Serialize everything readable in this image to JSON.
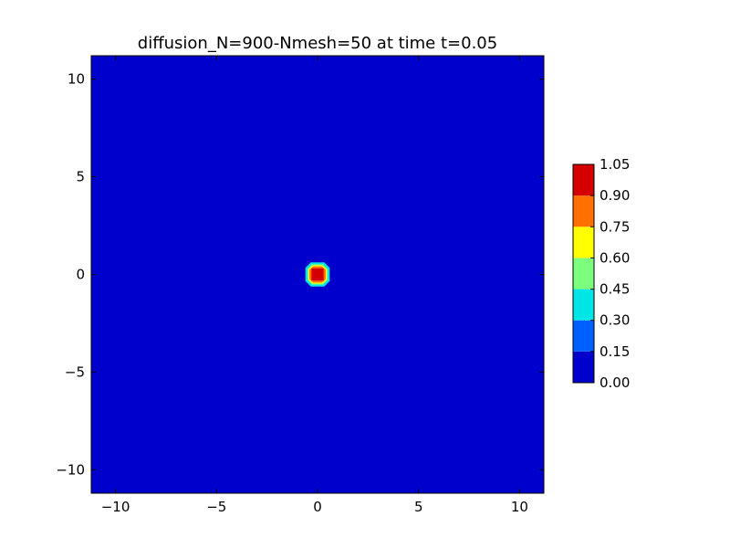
{
  "chart_data": {
    "type": "heatmap",
    "title": "diffusion_N=900-Nmesh=50 at time t=0.05",
    "xlabel": "",
    "ylabel": "",
    "xlim": [
      -11.2,
      11.2
    ],
    "ylim": [
      -11.2,
      11.2
    ],
    "x_ticks": [
      -10,
      -5,
      0,
      5,
      10
    ],
    "y_ticks": [
      -10,
      -5,
      0,
      5,
      10
    ],
    "x_tick_labels": [
      "−10",
      "−5",
      "0",
      "5",
      "10"
    ],
    "y_tick_labels": [
      "−10",
      "−5",
      "0",
      "5",
      "10"
    ],
    "grid": false,
    "background_value": 0.0,
    "blob": {
      "center": [
        0.0,
        0.0
      ],
      "contours": [
        {
          "level": 0.3,
          "radius": 0.6,
          "color": "#00e5e5"
        },
        {
          "level": 0.45,
          "radius": 0.5,
          "color": "#7dff7d"
        },
        {
          "level": 0.6,
          "radius": 0.45,
          "color": "#ffff00"
        },
        {
          "level": 0.75,
          "radius": 0.4,
          "color": "#ff7000"
        },
        {
          "level": 0.9,
          "radius": 0.3,
          "color": "#d40000"
        }
      ]
    },
    "colorbar": {
      "levels": [
        0.0,
        0.15,
        0.3,
        0.45,
        0.6,
        0.75,
        0.9,
        1.05
      ],
      "tick_labels": [
        "0.00",
        "0.15",
        "0.30",
        "0.45",
        "0.60",
        "0.75",
        "0.90",
        "1.05"
      ],
      "colors": [
        "#0000cc",
        "#005fff",
        "#00e5e5",
        "#7dff7d",
        "#ffff00",
        "#ff7000",
        "#d40000"
      ]
    }
  }
}
